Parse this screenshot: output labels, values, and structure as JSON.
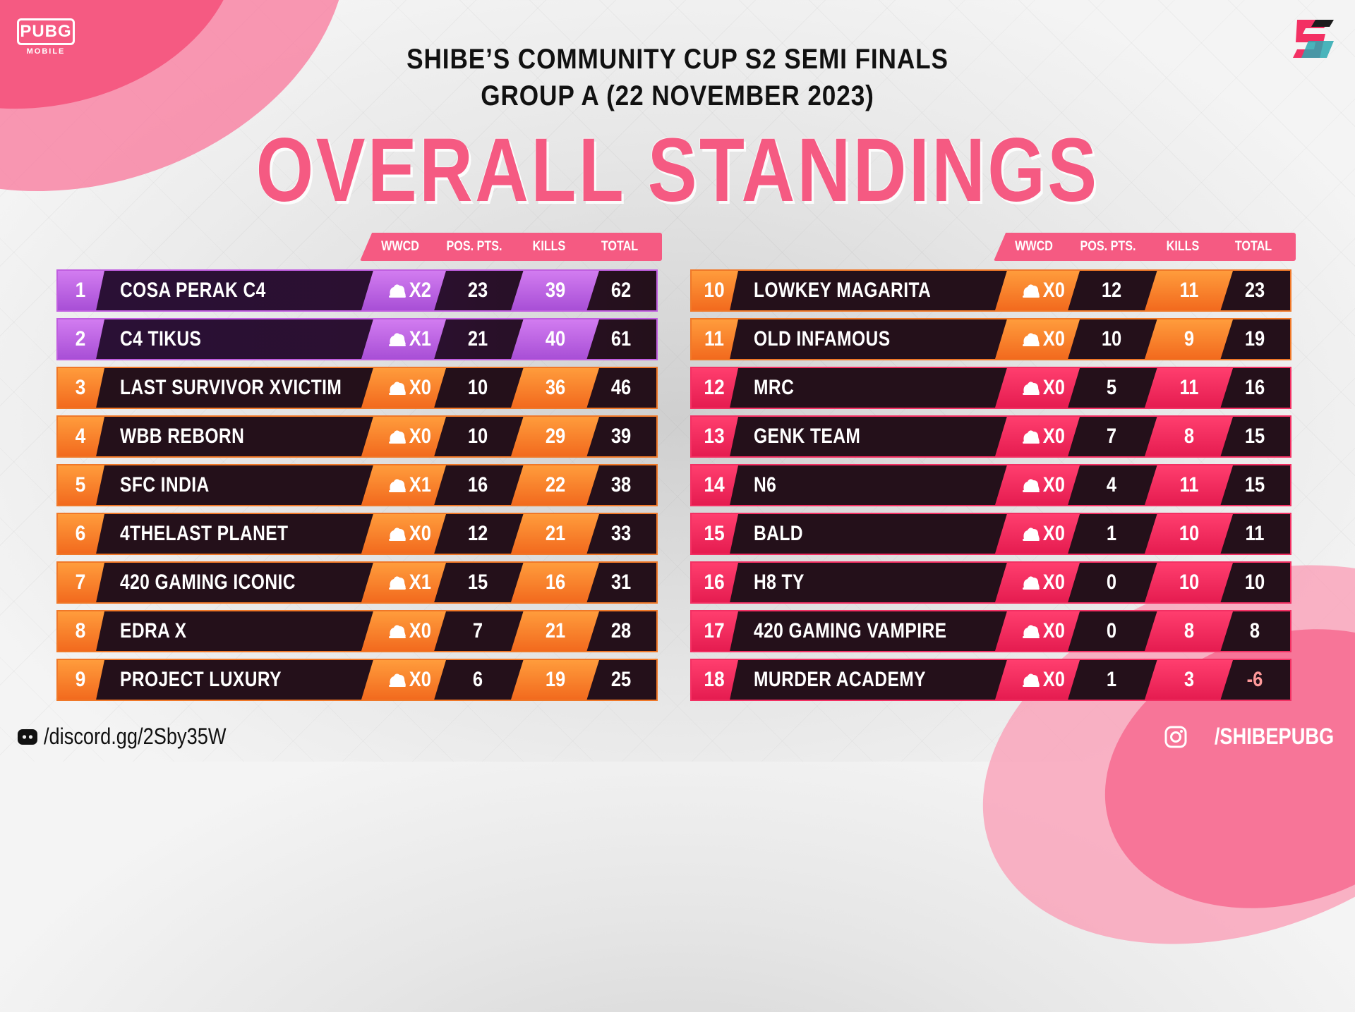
{
  "brand": {
    "pubg_main": "PUBG",
    "pubg_sub": "MOBILE",
    "right_logo_icon": "s2-logo-icon"
  },
  "titles": {
    "line1": "SHIBE’S COMMUNITY CUP S2 SEMI FINALS",
    "line2": "GROUP A (22 NOVEMBER 2023)",
    "headline": "OVERALL STANDINGS"
  },
  "columns": {
    "wwcd": "WWCD",
    "pos": "POS. PTS.",
    "kills": "KILLS",
    "total": "TOTAL"
  },
  "colors": {
    "purple": "#b95ce0",
    "orange": "#f47a2a",
    "pink": "#f32a5e",
    "headline": "#f55a82"
  },
  "left_table": [
    {
      "rank": "1",
      "team": "COSA PERAK C4",
      "wwcd": "X2",
      "pos": "23",
      "kills": "39",
      "total": "62",
      "color": "purple"
    },
    {
      "rank": "2",
      "team": "C4 TIKUS",
      "wwcd": "X1",
      "pos": "21",
      "kills": "40",
      "total": "61",
      "color": "purple"
    },
    {
      "rank": "3",
      "team": "LAST SURVIVOR XVICTIM",
      "wwcd": "X0",
      "pos": "10",
      "kills": "36",
      "total": "46",
      "color": "orange"
    },
    {
      "rank": "4",
      "team": "WBB REBORN",
      "wwcd": "X0",
      "pos": "10",
      "kills": "29",
      "total": "39",
      "color": "orange"
    },
    {
      "rank": "5",
      "team": "SFC INDIA",
      "wwcd": "X1",
      "pos": "16",
      "kills": "22",
      "total": "38",
      "color": "orange"
    },
    {
      "rank": "6",
      "team": "4THELAST PLANET",
      "wwcd": "X0",
      "pos": "12",
      "kills": "21",
      "total": "33",
      "color": "orange"
    },
    {
      "rank": "7",
      "team": "420 GAMING ICONIC",
      "wwcd": "X1",
      "pos": "15",
      "kills": "16",
      "total": "31",
      "color": "orange"
    },
    {
      "rank": "8",
      "team": "EDRA X",
      "wwcd": "X0",
      "pos": "7",
      "kills": "21",
      "total": "28",
      "color": "orange"
    },
    {
      "rank": "9",
      "team": "PROJECT LUXURY",
      "wwcd": "X0",
      "pos": "6",
      "kills": "19",
      "total": "25",
      "color": "orange"
    }
  ],
  "right_table": [
    {
      "rank": "10",
      "team": "LOWKEY MAGARITA",
      "wwcd": "X0",
      "pos": "12",
      "kills": "11",
      "total": "23",
      "color": "orange"
    },
    {
      "rank": "11",
      "team": "OLD INFAMOUS",
      "wwcd": "X0",
      "pos": "10",
      "kills": "9",
      "total": "19",
      "color": "orange"
    },
    {
      "rank": "12",
      "team": "MRC",
      "wwcd": "X0",
      "pos": "5",
      "kills": "11",
      "total": "16",
      "color": "pink"
    },
    {
      "rank": "13",
      "team": "GENK TEAM",
      "wwcd": "X0",
      "pos": "7",
      "kills": "8",
      "total": "15",
      "color": "pink"
    },
    {
      "rank": "14",
      "team": "N6",
      "wwcd": "X0",
      "pos": "4",
      "kills": "11",
      "total": "15",
      "color": "pink"
    },
    {
      "rank": "15",
      "team": "BALD",
      "wwcd": "X0",
      "pos": "1",
      "kills": "10",
      "total": "11",
      "color": "pink"
    },
    {
      "rank": "16",
      "team": "H8 TY",
      "wwcd": "X0",
      "pos": "0",
      "kills": "10",
      "total": "10",
      "color": "pink"
    },
    {
      "rank": "17",
      "team": "420 GAMING VAMPIRE",
      "wwcd": "X0",
      "pos": "0",
      "kills": "8",
      "total": "8",
      "color": "pink"
    },
    {
      "rank": "18",
      "team": "MURDER ACADEMY",
      "wwcd": "X0",
      "pos": "1",
      "kills": "3",
      "total": "-6",
      "color": "pink"
    }
  ],
  "footer": {
    "discord": "/discord.gg/2Sby35W",
    "instagram": "/SHIBEPUBG",
    "discord_icon": "discord-icon",
    "instagram_icon": "instagram-icon"
  }
}
